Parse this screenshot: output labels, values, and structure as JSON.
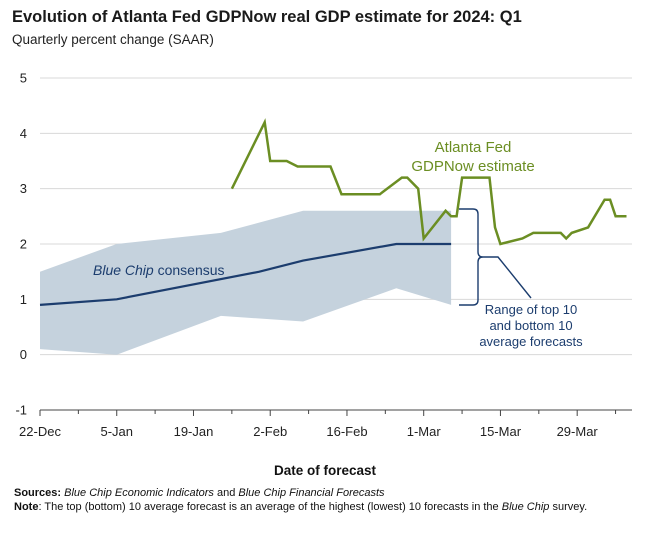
{
  "chart_data": {
    "type": "line",
    "title": "Evolution of Atlanta Fed GDPNow real GDP estimate for 2024: Q1",
    "subtitle": "Quarterly percent change (SAAR)",
    "xlabel": "Date of forecast",
    "ylabel": "",
    "ylim": [
      -1,
      5
    ],
    "y_ticks": [
      "5",
      "4",
      "3",
      "2",
      "1",
      "0",
      "-1"
    ],
    "x_ticks": [
      "22-Dec",
      "5-Jan",
      "19-Jan",
      "2-Feb",
      "16-Feb",
      "1-Mar",
      "15-Mar",
      "29-Mar"
    ],
    "grid": "horizontal",
    "series": [
      {
        "name": "Atlanta Fed GDPNow estimate",
        "color": "#6b8e23",
        "points": [
          {
            "x": "2024-01-26",
            "y": 3.0
          },
          {
            "x": "2024-02-01",
            "y": 4.2
          },
          {
            "x": "2024-02-02",
            "y": 3.5
          },
          {
            "x": "2024-02-05",
            "y": 3.5
          },
          {
            "x": "2024-02-07",
            "y": 3.4
          },
          {
            "x": "2024-02-13",
            "y": 3.4
          },
          {
            "x": "2024-02-15",
            "y": 2.9
          },
          {
            "x": "2024-02-22",
            "y": 2.9
          },
          {
            "x": "2024-02-26",
            "y": 3.2
          },
          {
            "x": "2024-02-27",
            "y": 3.2
          },
          {
            "x": "2024-02-29",
            "y": 3.0
          },
          {
            "x": "2024-03-01",
            "y": 2.1
          },
          {
            "x": "2024-03-05",
            "y": 2.6
          },
          {
            "x": "2024-03-06",
            "y": 2.5
          },
          {
            "x": "2024-03-07",
            "y": 2.5
          },
          {
            "x": "2024-03-08",
            "y": 3.2
          },
          {
            "x": "2024-03-12",
            "y": 3.2
          },
          {
            "x": "2024-03-13",
            "y": 3.2
          },
          {
            "x": "2024-03-14",
            "y": 2.3
          },
          {
            "x": "2024-03-15",
            "y": 2.0
          },
          {
            "x": "2024-03-19",
            "y": 2.1
          },
          {
            "x": "2024-03-21",
            "y": 2.2
          },
          {
            "x": "2024-03-26",
            "y": 2.2
          },
          {
            "x": "2024-03-27",
            "y": 2.1
          },
          {
            "x": "2024-03-28",
            "y": 2.2
          },
          {
            "x": "2024-03-31",
            "y": 2.3
          },
          {
            "x": "2024-04-03",
            "y": 2.8
          },
          {
            "x": "2024-04-04",
            "y": 2.8
          },
          {
            "x": "2024-04-05",
            "y": 2.5
          },
          {
            "x": "2024-04-07",
            "y": 2.5
          }
        ]
      },
      {
        "name": "Blue Chip consensus",
        "color": "#1c3d6e",
        "points": [
          {
            "x": "2023-12-22",
            "y": 0.9
          },
          {
            "x": "2024-01-05",
            "y": 1.0
          },
          {
            "x": "2024-01-31",
            "y": 1.5
          },
          {
            "x": "2024-02-08",
            "y": 1.7
          },
          {
            "x": "2024-02-25",
            "y": 2.0
          },
          {
            "x": "2024-03-06",
            "y": 2.0
          }
        ]
      }
    ],
    "band": {
      "name": "Range of top 10 and bottom 10 average forecasts",
      "color": "#c5d2dd",
      "top": [
        {
          "x": "2023-12-22",
          "y": 1.5
        },
        {
          "x": "2024-01-05",
          "y": 2.0
        },
        {
          "x": "2024-01-24",
          "y": 2.2
        },
        {
          "x": "2024-02-08",
          "y": 2.6
        },
        {
          "x": "2024-03-06",
          "y": 2.6
        }
      ],
      "bottom": [
        {
          "x": "2024-03-06",
          "y": 0.9
        },
        {
          "x": "2024-02-25",
          "y": 1.2
        },
        {
          "x": "2024-02-08",
          "y": 0.6
        },
        {
          "x": "2024-01-24",
          "y": 0.7
        },
        {
          "x": "2024-01-05",
          "y": 0.0
        },
        {
          "x": "2023-12-22",
          "y": 0.1
        }
      ]
    },
    "annotations": {
      "gdpnow_line1": "Atlanta Fed",
      "gdpnow_line2": "GDPNow estimate",
      "bluechip_italic": "Blue Chip",
      "bluechip_rest": " consensus",
      "range_line1": "Range of top 10",
      "range_line2": "and bottom 10",
      "range_line3": "average forecasts"
    }
  },
  "notes": {
    "sources_label": "Sources:",
    "sources_italic1": "Blue Chip Economic Indicators",
    "sources_and": " and ",
    "sources_italic2": "Blue Chip Financial Forecasts",
    "note_label": "Note",
    "note_text": ": The top (bottom) 10 average forecast is an average of the highest (lowest) 10 forecasts in the ",
    "note_italic": "Blue Chip",
    "note_end": " survey."
  }
}
